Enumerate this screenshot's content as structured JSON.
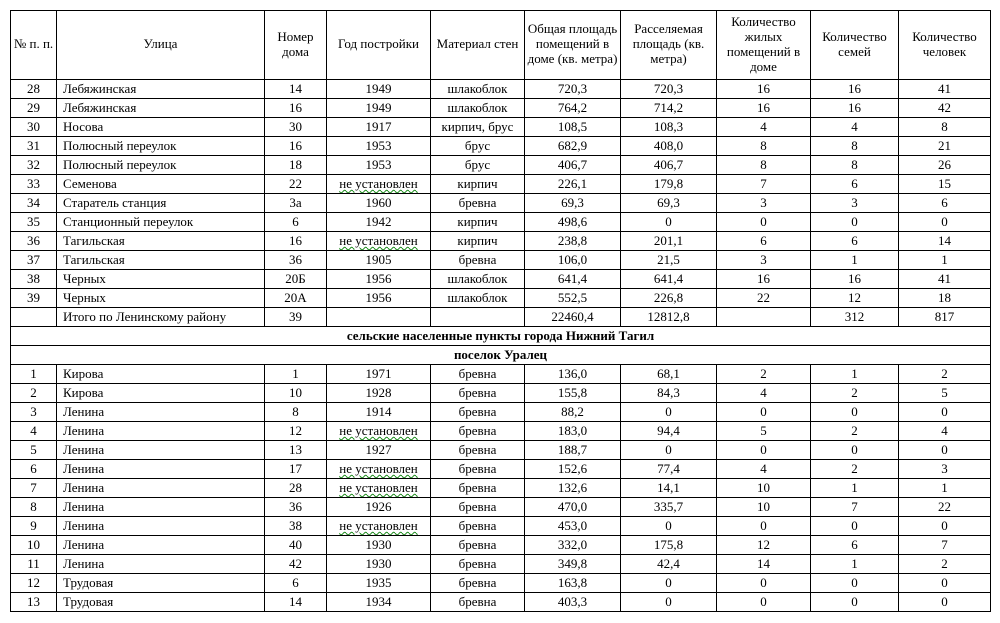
{
  "columns": [
    "№ п. п.",
    "Улица",
    "Номер дома",
    "Год постройки",
    "Материал стен",
    "Общая площадь помещений в доме (кв. метра)",
    "Расселяемая площадь (кв. метра)",
    "Количество жилых помещений в доме",
    "Количество семей",
    "Количество человек"
  ],
  "not_established": "не установлен",
  "rows_top": [
    {
      "n": "28",
      "street": "Лебяжинская",
      "house": "14",
      "year": "1949",
      "material": "шлакоблок",
      "total": "720,3",
      "resettle": "720,3",
      "rooms": "16",
      "families": "16",
      "people": "41"
    },
    {
      "n": "29",
      "street": "Лебяжинская",
      "house": "16",
      "year": "1949",
      "material": "шлакоблок",
      "total": "764,2",
      "resettle": "714,2",
      "rooms": "16",
      "families": "16",
      "people": "42"
    },
    {
      "n": "30",
      "street": "Носова",
      "house": "30",
      "year": "1917",
      "material": "кирпич, брус",
      "total": "108,5",
      "resettle": "108,3",
      "rooms": "4",
      "families": "4",
      "people": "8"
    },
    {
      "n": "31",
      "street": "Полюсный переулок",
      "house": "16",
      "year": "1953",
      "material": "брус",
      "total": "682,9",
      "resettle": "408,0",
      "rooms": "8",
      "families": "8",
      "people": "21"
    },
    {
      "n": "32",
      "street": "Полюсный переулок",
      "house": "18",
      "year": "1953",
      "material": "брус",
      "total": "406,7",
      "resettle": "406,7",
      "rooms": "8",
      "families": "8",
      "people": "26"
    },
    {
      "n": "33",
      "street": "Семенова",
      "house": "22",
      "year": "@NE",
      "material": "кирпич",
      "total": "226,1",
      "resettle": "179,8",
      "rooms": "7",
      "families": "6",
      "people": "15"
    },
    {
      "n": "34",
      "street": "Старатель станция",
      "house": "3а",
      "year": "1960",
      "material": "бревна",
      "total": "69,3",
      "resettle": "69,3",
      "rooms": "3",
      "families": "3",
      "people": "6"
    },
    {
      "n": "35",
      "street": "Станционный переулок",
      "house": "6",
      "year": "1942",
      "material": "кирпич",
      "total": "498,6",
      "resettle": "0",
      "rooms": "0",
      "families": "0",
      "people": "0"
    },
    {
      "n": "36",
      "street": "Тагильская",
      "house": "16",
      "year": "@NE",
      "material": "кирпич",
      "total": "238,8",
      "resettle": "201,1",
      "rooms": "6",
      "families": "6",
      "people": "14"
    },
    {
      "n": "37",
      "street": "Тагильская",
      "house": "36",
      "year": "1905",
      "material": "бревна",
      "total": "106,0",
      "resettle": "21,5",
      "rooms": "3",
      "families": "1",
      "people": "1"
    },
    {
      "n": "38",
      "street": "Черных",
      "house": "20Б",
      "year": "1956",
      "material": "шлакоблок",
      "total": "641,4",
      "resettle": "641,4",
      "rooms": "16",
      "families": "16",
      "people": "41"
    },
    {
      "n": "39",
      "street": "Черных",
      "house": "20А",
      "year": "1956",
      "material": "шлакоблок",
      "total": "552,5",
      "resettle": "226,8",
      "rooms": "22",
      "families": "12",
      "people": "18"
    }
  ],
  "subtotal": {
    "n": "",
    "street": "Итого по Ленинскому району",
    "house": "39",
    "year": "",
    "material": "",
    "total": "22460,4",
    "resettle": "12812,8",
    "rooms": "",
    "families": "312",
    "people": "817"
  },
  "section1": "сельские населенные пункты города Нижний Тагил",
  "section2": "поселок Уралец",
  "rows_bottom": [
    {
      "n": "1",
      "street": "Кирова",
      "house": "1",
      "year": "1971",
      "material": "бревна",
      "total": "136,0",
      "resettle": "68,1",
      "rooms": "2",
      "families": "1",
      "people": "2"
    },
    {
      "n": "2",
      "street": "Кирова",
      "house": "10",
      "year": "1928",
      "material": "бревна",
      "total": "155,8",
      "resettle": "84,3",
      "rooms": "4",
      "families": "2",
      "people": "5"
    },
    {
      "n": "3",
      "street": "Ленина",
      "house": "8",
      "year": "1914",
      "material": "бревна",
      "total": "88,2",
      "resettle": "0",
      "rooms": "0",
      "families": "0",
      "people": "0"
    },
    {
      "n": "4",
      "street": "Ленина",
      "house": "12",
      "year": "@NE",
      "material": "бревна",
      "total": "183,0",
      "resettle": "94,4",
      "rooms": "5",
      "families": "2",
      "people": "4"
    },
    {
      "n": "5",
      "street": "Ленина",
      "house": "13",
      "year": "1927",
      "material": "бревна",
      "total": "188,7",
      "resettle": "0",
      "rooms": "0",
      "families": "0",
      "people": "0"
    },
    {
      "n": "6",
      "street": "Ленина",
      "house": "17",
      "year": "@NE",
      "material": "бревна",
      "total": "152,6",
      "resettle": "77,4",
      "rooms": "4",
      "families": "2",
      "people": "3"
    },
    {
      "n": "7",
      "street": "Ленина",
      "house": "28",
      "year": "@NE",
      "material": "бревна",
      "total": "132,6",
      "resettle": "14,1",
      "rooms": "10",
      "families": "1",
      "people": "1"
    },
    {
      "n": "8",
      "street": "Ленина",
      "house": "36",
      "year": "1926",
      "material": "бревна",
      "total": "470,0",
      "resettle": "335,7",
      "rooms": "10",
      "families": "7",
      "people": "22"
    },
    {
      "n": "9",
      "street": "Ленина",
      "house": "38",
      "year": "@NE",
      "material": "бревна",
      "total": "453,0",
      "resettle": "0",
      "rooms": "0",
      "families": "0",
      "people": "0"
    },
    {
      "n": "10",
      "street": "Ленина",
      "house": "40",
      "year": "1930",
      "material": "бревна",
      "total": "332,0",
      "resettle": "175,8",
      "rooms": "12",
      "families": "6",
      "people": "7"
    },
    {
      "n": "11",
      "street": "Ленина",
      "house": "42",
      "year": "1930",
      "material": "бревна",
      "total": "349,8",
      "resettle": "42,4",
      "rooms": "14",
      "families": "1",
      "people": "2"
    },
    {
      "n": "12",
      "street": "Трудовая",
      "house": "6",
      "year": "1935",
      "material": "бревна",
      "total": "163,8",
      "resettle": "0",
      "rooms": "0",
      "families": "0",
      "people": "0"
    },
    {
      "n": "13",
      "street": "Трудовая",
      "house": "14",
      "year": "1934",
      "material": "бревна",
      "total": "403,3",
      "resettle": "0",
      "rooms": "0",
      "families": "0",
      "people": "0"
    }
  ]
}
